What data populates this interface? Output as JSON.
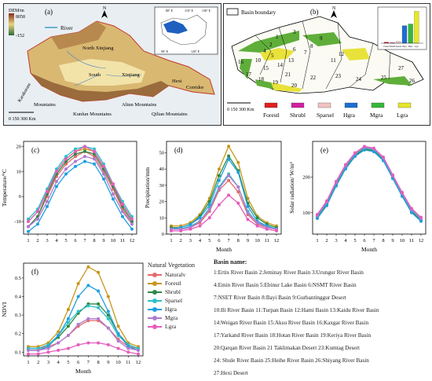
{
  "panel_a": {
    "letter": "(a)",
    "dem_title": "DEM/m",
    "dem_max": "8058",
    "dem_min": "-152",
    "river_label": "River",
    "north": "N",
    "scale": "0  150 300 Km",
    "regions": [
      "North Xinjiang",
      "South",
      "Xinjiang",
      "Hexi",
      "Corridor",
      "Kunlun Mountains",
      "Altun Mountains",
      "Qilian Mountains",
      "Karakoram",
      "Mountains"
    ],
    "inset_ticks": [
      "80° E",
      "110° E",
      "130° E",
      "90° E",
      "120° E",
      "40° N",
      "30° N",
      "20° N",
      "10° N"
    ]
  },
  "panel_b": {
    "letter": "(b)",
    "boundary_label": "Basin boundary",
    "north": "N",
    "scale": "0  150 300 Km",
    "basin_numbers": [
      "1",
      "2",
      "3",
      "4",
      "5",
      "6",
      "7",
      "8",
      "9",
      "10",
      "11",
      "12",
      "13",
      "14",
      "15",
      "16",
      "17",
      "18",
      "19",
      "20",
      "21",
      "22",
      "23",
      "24",
      "25",
      "26",
      "27"
    ],
    "legend": [
      "Forestl",
      "Shrubl",
      "Sparsel",
      "Hgra",
      "Mgra",
      "Lgra"
    ],
    "legend_colors": [
      "#e02020",
      "#d21fa0",
      "#f4c2c2",
      "#1c6fd1",
      "#37b63a",
      "#e6e62a"
    ],
    "inset_bars": {
      "categories": [
        "Forestl",
        "Shrubl",
        "Sparsel",
        "Hgra",
        "Mgra",
        "Lgra"
      ],
      "values": [
        2,
        1,
        3,
        32,
        35,
        58
      ]
    }
  },
  "series_style": {
    "names": [
      "Naturalv",
      "Forestl",
      "Shrubl",
      "Sparsel",
      "Hgra",
      "Mgra",
      "Lgra"
    ],
    "colors": [
      "#e46a6a",
      "#c7961b",
      "#2a8a43",
      "#2cc0c8",
      "#1f9fe0",
      "#b07ad0",
      "#e65cbd"
    ]
  },
  "legend_f": {
    "title": "Natural Vegetation",
    "items": [
      "Naturalv",
      "Forestl",
      "Shrubl",
      "Sparsel",
      "Hgra",
      "Mgra",
      "Lgra"
    ]
  },
  "basin_names": {
    "title": "Basin name:",
    "rows": [
      "1:Ertix River Basin  2:Jeminay River Basin 3:Urungur River Basin",
      "4:Emin River Basin  5:Ebinur Lake Basin     6:NSMT River Basin",
      "7:NSET River Basin  8:Bayi Basin              9:Gurbantinggur Desert",
      "10:Ili River Basin   11:Turpan Basin    12:Hami Basin  13:Kaidu River Basin",
      "14:Weigan River Basin 15:Aksu River Basin  16:Kaxgar River Basin",
      "17:Yarkand River Basin 18:Hotan River Basin 19:Keriya River Basin",
      "20:Qarqan River Basin  21   Taklimakan Desert  23:Kumtag Desert",
      "24: Shule River Basin    25:Heihe River Basin  26:Shiyang River Basin",
      "27:Hexi Desert"
    ]
  },
  "chart_data": [
    {
      "id": "c",
      "letter": "(c)",
      "type": "line",
      "x": [
        1,
        2,
        3,
        4,
        5,
        6,
        7,
        8,
        9,
        10,
        11,
        12
      ],
      "xlabel": "",
      "ylabel": "Temperature/°C",
      "ylim": [
        -15,
        22
      ],
      "yticks": [
        -10,
        0,
        10,
        20
      ],
      "series": [
        {
          "name": "Naturalv",
          "values": [
            -12,
            -8,
            0,
            8,
            13,
            16,
            18,
            16,
            10,
            3,
            -5,
            -11
          ]
        },
        {
          "name": "Forestl",
          "values": [
            -10,
            -6,
            2,
            10,
            15,
            18,
            19,
            18,
            12,
            5,
            -3,
            -9
          ]
        },
        {
          "name": "Shrubl",
          "values": [
            -12,
            -8,
            1,
            9,
            14,
            17,
            18,
            17,
            11,
            4,
            -4,
            -10
          ]
        },
        {
          "name": "Sparsel",
          "values": [
            -9,
            -5,
            3,
            11,
            16,
            19,
            20,
            19,
            13,
            5,
            -2,
            -8
          ]
        },
        {
          "name": "Hgra",
          "values": [
            -14,
            -11,
            -4,
            4,
            9,
            12,
            14,
            13,
            7,
            -1,
            -8,
            -13
          ]
        },
        {
          "name": "Mgra",
          "values": [
            -12,
            -9,
            -2,
            6,
            11,
            14,
            16,
            15,
            9,
            1,
            -6,
            -11
          ]
        },
        {
          "name": "Lgra",
          "values": [
            -10,
            -6,
            2,
            10,
            15,
            18,
            20,
            18,
            12,
            5,
            -3,
            -9
          ]
        }
      ]
    },
    {
      "id": "d",
      "letter": "(d)",
      "type": "line",
      "x": [
        1,
        2,
        3,
        4,
        5,
        6,
        7,
        8,
        9,
        10,
        11,
        12
      ],
      "xlabel": "Month",
      "ylabel": "Precipitation/mm",
      "ylim": [
        0,
        57
      ],
      "yticks": [
        0,
        10,
        20,
        30,
        40,
        50
      ],
      "series": [
        {
          "name": "Naturalv",
          "values": [
            3,
            3,
            4,
            7,
            14,
            27,
            33,
            26,
            12,
            6,
            4,
            3
          ]
        },
        {
          "name": "Forestl",
          "values": [
            5,
            5,
            7,
            12,
            22,
            40,
            54,
            44,
            22,
            11,
            7,
            5
          ]
        },
        {
          "name": "Shrubl",
          "values": [
            4,
            4,
            6,
            11,
            20,
            36,
            48,
            39,
            19,
            10,
            6,
            4
          ]
        },
        {
          "name": "Sparsel",
          "values": [
            3,
            3,
            5,
            8,
            16,
            29,
            37,
            29,
            14,
            7,
            5,
            3
          ]
        },
        {
          "name": "Hgra",
          "values": [
            3,
            4,
            6,
            10,
            18,
            33,
            46,
            38,
            17,
            8,
            5,
            3
          ]
        },
        {
          "name": "Mgra",
          "values": [
            3,
            3,
            4,
            8,
            15,
            28,
            36,
            29,
            13,
            7,
            4,
            3
          ]
        },
        {
          "name": "Lgra",
          "values": [
            2,
            2,
            3,
            5,
            10,
            18,
            24,
            19,
            9,
            5,
            3,
            2
          ]
        }
      ]
    },
    {
      "id": "e",
      "letter": "(e)",
      "type": "line",
      "x": [
        1,
        2,
        3,
        4,
        5,
        6,
        7,
        8,
        9,
        10,
        11,
        12
      ],
      "xlabel": "Month",
      "ylabel": "Solar radiation/ W/m²",
      "ylim": [
        40,
        300
      ],
      "yticks": [
        100,
        200
      ],
      "series": [
        {
          "name": "Naturalv",
          "values": [
            88,
            125,
            180,
            228,
            262,
            280,
            275,
            250,
            200,
            150,
            105,
            80
          ]
        },
        {
          "name": "Forestl",
          "values": [
            85,
            122,
            177,
            225,
            260,
            278,
            273,
            248,
            198,
            148,
            102,
            78
          ]
        },
        {
          "name": "Shrubl",
          "values": [
            86,
            123,
            178,
            226,
            261,
            279,
            274,
            249,
            199,
            149,
            103,
            79
          ]
        },
        {
          "name": "Sparsel",
          "values": [
            90,
            128,
            183,
            230,
            264,
            282,
            277,
            252,
            202,
            152,
            107,
            82
          ]
        },
        {
          "name": "Hgra",
          "values": [
            84,
            120,
            175,
            223,
            258,
            276,
            271,
            246,
            196,
            146,
            100,
            76
          ]
        },
        {
          "name": "Mgra",
          "values": [
            92,
            130,
            185,
            232,
            266,
            284,
            279,
            254,
            204,
            154,
            109,
            84
          ]
        },
        {
          "name": "Lgra",
          "values": [
            95,
            133,
            188,
            235,
            268,
            286,
            281,
            256,
            206,
            157,
            112,
            87
          ]
        }
      ]
    },
    {
      "id": "f",
      "letter": "(f)",
      "type": "line",
      "x": [
        1,
        2,
        3,
        4,
        5,
        6,
        7,
        8,
        9,
        10,
        11,
        12
      ],
      "xlabel": "Month",
      "ylabel": "NDVI",
      "ylim": [
        0.08,
        0.58
      ],
      "yticks": [
        0.1,
        0.2,
        0.3,
        0.4,
        0.5
      ],
      "series": [
        {
          "name": "Naturalv",
          "values": [
            0.12,
            0.12,
            0.13,
            0.15,
            0.19,
            0.24,
            0.27,
            0.27,
            0.23,
            0.17,
            0.13,
            0.12
          ]
        },
        {
          "name": "Forestl",
          "values": [
            0.13,
            0.13,
            0.15,
            0.21,
            0.33,
            0.47,
            0.56,
            0.53,
            0.4,
            0.24,
            0.15,
            0.13
          ]
        },
        {
          "name": "Shrubl",
          "values": [
            0.12,
            0.12,
            0.14,
            0.18,
            0.24,
            0.31,
            0.36,
            0.36,
            0.3,
            0.2,
            0.14,
            0.12
          ]
        },
        {
          "name": "Sparsel",
          "values": [
            0.12,
            0.12,
            0.14,
            0.19,
            0.26,
            0.32,
            0.35,
            0.34,
            0.28,
            0.19,
            0.14,
            0.12
          ]
        },
        {
          "name": "Hgra",
          "values": [
            0.11,
            0.11,
            0.13,
            0.19,
            0.28,
            0.4,
            0.46,
            0.43,
            0.32,
            0.2,
            0.13,
            0.11
          ]
        },
        {
          "name": "Mgra",
          "values": [
            0.11,
            0.11,
            0.12,
            0.15,
            0.19,
            0.25,
            0.28,
            0.28,
            0.23,
            0.16,
            0.12,
            0.11
          ]
        },
        {
          "name": "Lgra",
          "values": [
            0.09,
            0.09,
            0.1,
            0.11,
            0.12,
            0.14,
            0.15,
            0.15,
            0.14,
            0.12,
            0.1,
            0.09
          ]
        }
      ]
    }
  ]
}
